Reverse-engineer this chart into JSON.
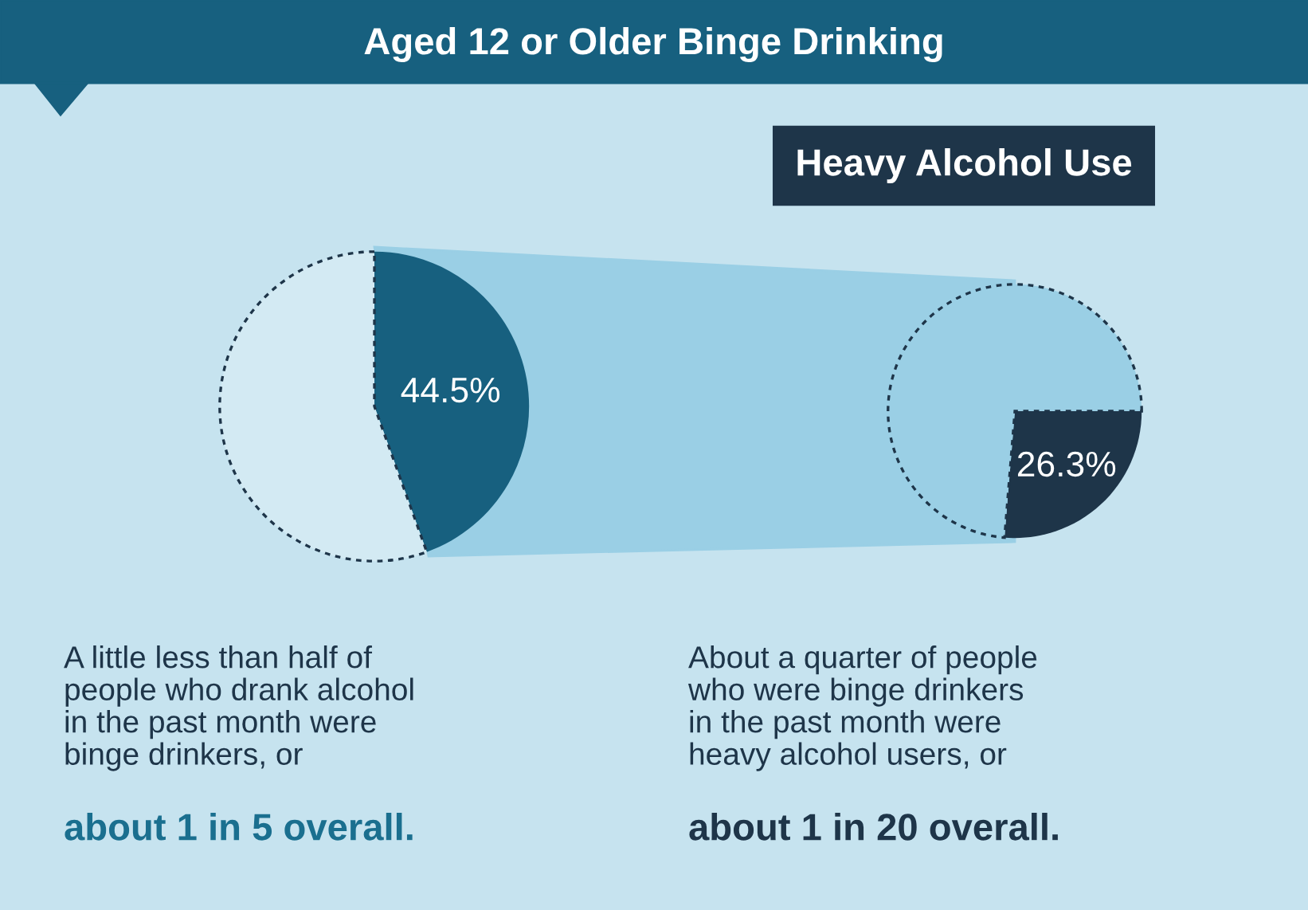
{
  "chart_data": [
    {
      "type": "pie",
      "title": "Aged 12 or Older Binge Drinking",
      "categories": [
        null,
        null
      ],
      "values": [
        44.5,
        55.5
      ],
      "colors": [
        "#17607f",
        "#d3eaf3"
      ],
      "value_labels": [
        "44.5%",
        null
      ],
      "annotations": [
        "A little less than half of\npeople who drank alcohol\nin the past month were\nbinge drinkers, or",
        "about 1 in 5 overall."
      ]
    },
    {
      "type": "pie",
      "title": "Heavy Alcohol Use",
      "categories": [
        null,
        null
      ],
      "values": [
        26.3,
        73.7
      ],
      "colors": [
        "#1e3549",
        "#9acfe5"
      ],
      "value_labels": [
        "26.3%",
        null
      ],
      "annotations": [
        "About a quarter of people\nwho were binge drinkers\nin the past month were\nheavy alcohol users, or",
        "about 1 in 20 overall."
      ]
    }
  ]
}
